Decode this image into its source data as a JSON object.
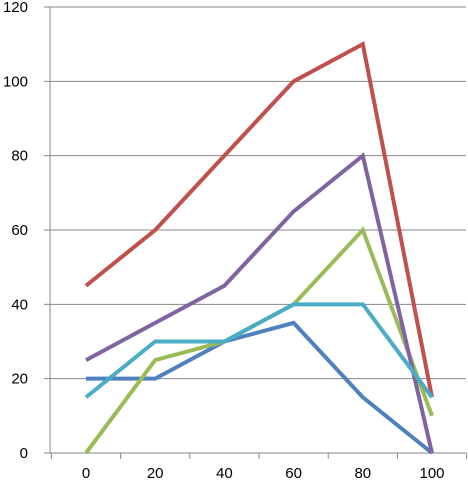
{
  "chart_data": {
    "type": "line",
    "x": [
      0,
      20,
      40,
      60,
      80,
      100
    ],
    "xlim": [
      0,
      100
    ],
    "ylim": [
      0,
      120
    ],
    "x_ticks": [
      "0",
      "20",
      "40",
      "60",
      "80",
      "100"
    ],
    "y_ticks": [
      "0",
      "20",
      "40",
      "60",
      "80",
      "100",
      "120"
    ],
    "grid": "horizontal",
    "legend": "none",
    "series": [
      {
        "color": "#4F81BD",
        "values": [
          20,
          20,
          30,
          35,
          15,
          0
        ]
      },
      {
        "color": "#C0504D",
        "values": [
          45,
          60,
          80,
          100,
          110,
          15
        ]
      },
      {
        "color": "#9BBB59",
        "values": [
          0,
          25,
          30,
          40,
          60,
          10
        ]
      },
      {
        "color": "#8064A2",
        "values": [
          25,
          35,
          45,
          65,
          80,
          0
        ]
      },
      {
        "color": "#4BACC6",
        "values": [
          15,
          30,
          30,
          40,
          40,
          15
        ]
      }
    ]
  }
}
